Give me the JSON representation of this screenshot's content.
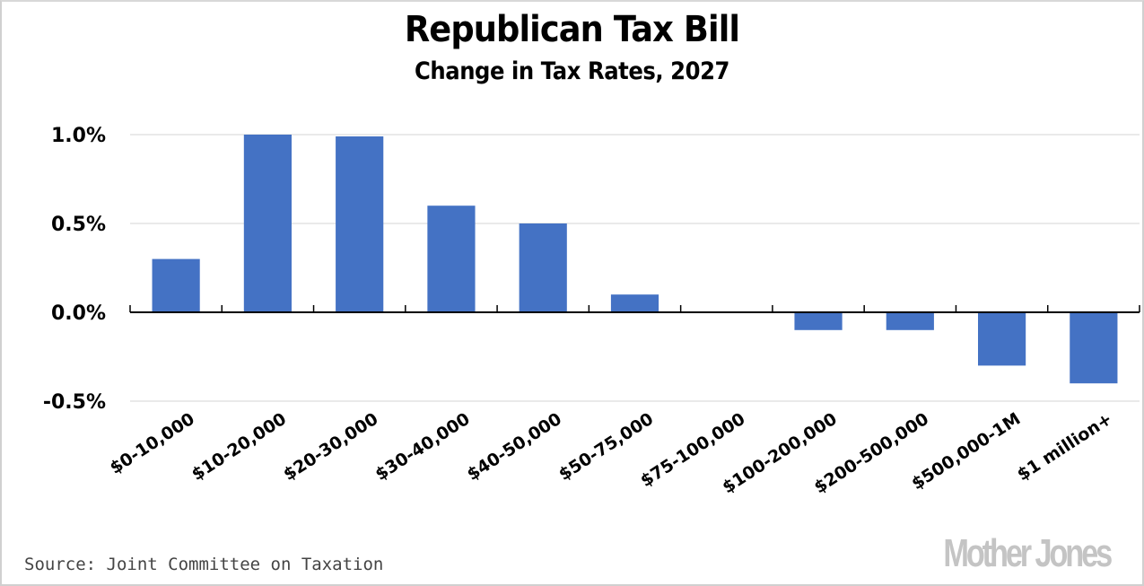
{
  "chart_data": {
    "type": "bar",
    "title": "Republican Tax Bill",
    "subtitle": "Change in Tax Rates, 2027",
    "xlabel": "",
    "ylabel": "",
    "categories": [
      "$0-10,000",
      "$10-20,000",
      "$20-30,000",
      "$30-40,000",
      "$40-50,000",
      "$50-75,000",
      "$75-100,000",
      "$100-200,000",
      "$200-500,000",
      "$500,000-1M",
      "$1 million+"
    ],
    "values": [
      0.3,
      1.0,
      0.99,
      0.6,
      0.5,
      0.1,
      0.0,
      -0.1,
      -0.1,
      -0.3,
      -0.4
    ],
    "unit": "%",
    "ylim": [
      -0.5,
      1.0
    ],
    "yticks": [
      -0.5,
      0.0,
      0.5,
      1.0
    ],
    "ytick_labels": [
      "-0.5%",
      "0.0%",
      "0.5%",
      "1.0%"
    ],
    "grid": true,
    "legend": "none",
    "bar_color": "#4472c4",
    "source": "Source: Joint Committee on Taxation"
  },
  "branding": {
    "logo": "Mother Jones",
    "logo_color": "#c4c4c4"
  }
}
